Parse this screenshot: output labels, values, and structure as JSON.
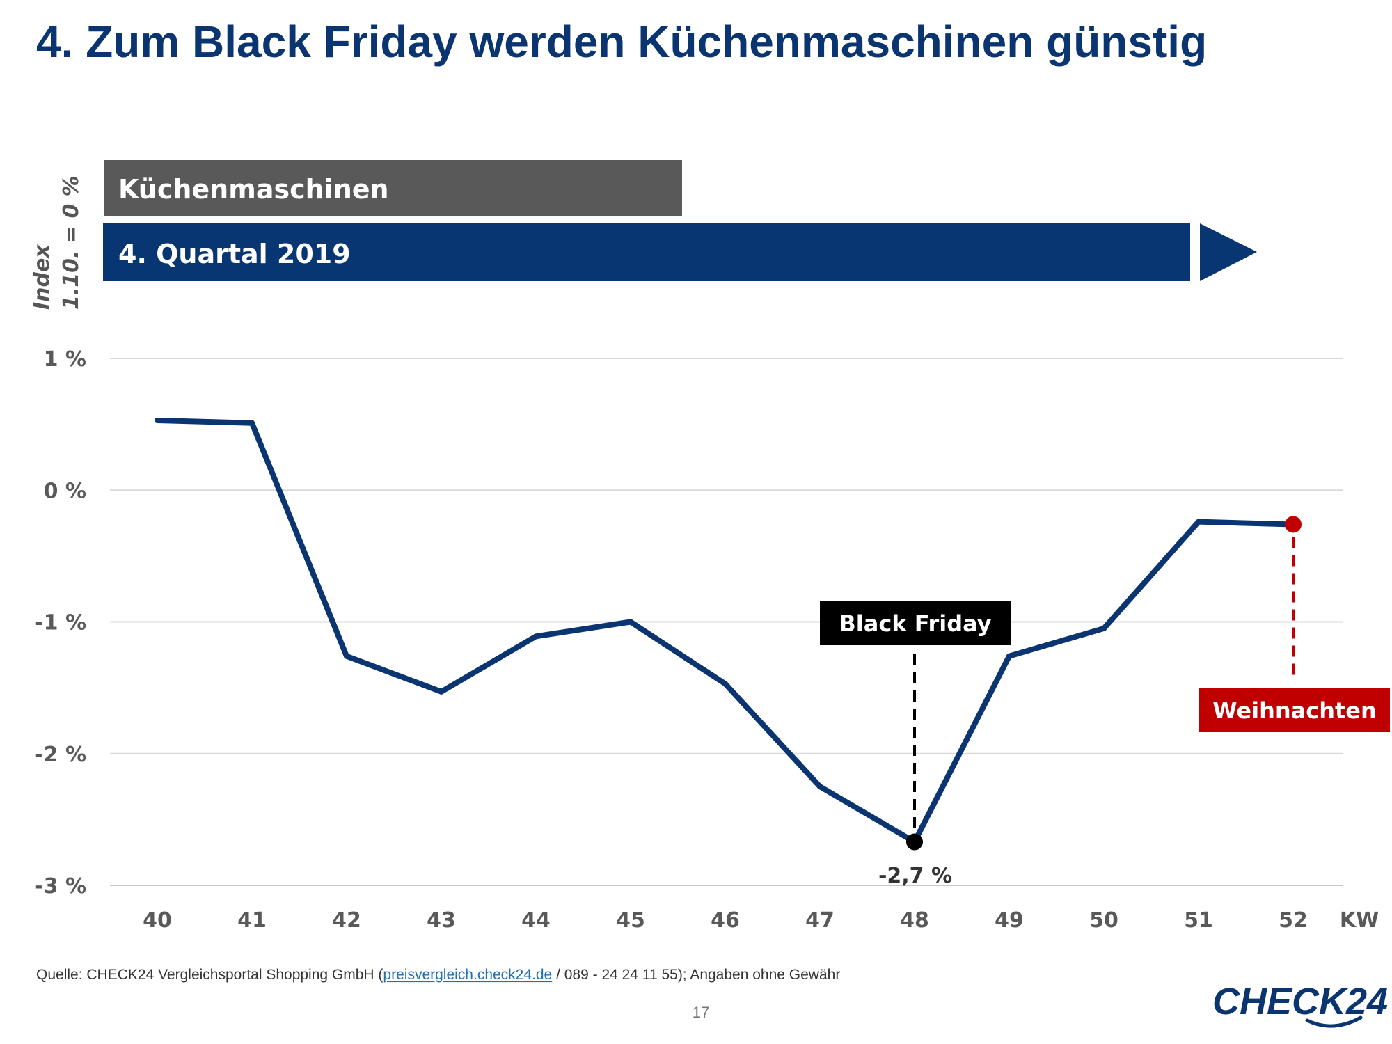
{
  "page": {
    "title": "4. Zum Black Friday werden Küchenmaschinen günstig",
    "band_category": "Küchenmaschinen",
    "band_period": "4. Quartal 2019",
    "source_prefix": "Quelle: CHECK24 Vergleichsportal Shopping GmbH (",
    "source_link": "preisvergleich.check24.de",
    "source_suffix": " / 089 - 24 24 11 55); Angaben ohne Gewähr",
    "page_number": "17",
    "logo_text": "CHECK24"
  },
  "colors": {
    "title": "#0a3571",
    "line": "#0a3571",
    "band_category": "#595959",
    "band_period": "#073672",
    "black_friday": "#000000",
    "christmas": "#c00000",
    "grid": "#d9d9d9"
  },
  "chart_data": {
    "type": "line",
    "ylabel_line1": "Index",
    "ylabel_line2": "1.10. = 0 %",
    "xlabel": "KW",
    "x": [
      40,
      41,
      42,
      43,
      44,
      45,
      46,
      47,
      48,
      49,
      50,
      51,
      52
    ],
    "series": [
      {
        "values": [
          0.53,
          0.51,
          -1.26,
          -1.53,
          -1.11,
          -1.0,
          -1.47,
          -2.25,
          -2.67,
          -1.26,
          -1.05,
          -0.24,
          -0.26
        ]
      }
    ],
    "ylim": [
      -3,
      1
    ],
    "yticks": [
      1,
      0,
      -1,
      -2,
      -3
    ],
    "ytick_labels": [
      "1 %",
      "0 %",
      "-1 %",
      "-2 %",
      "-3 %"
    ],
    "grid": true,
    "annotations": {
      "black_friday": {
        "label": "Black Friday",
        "x": 48,
        "y": -2.67,
        "value_label": "-2,7 %"
      },
      "christmas": {
        "label": "Weihnachten",
        "x": 52,
        "y": -0.26
      }
    }
  }
}
